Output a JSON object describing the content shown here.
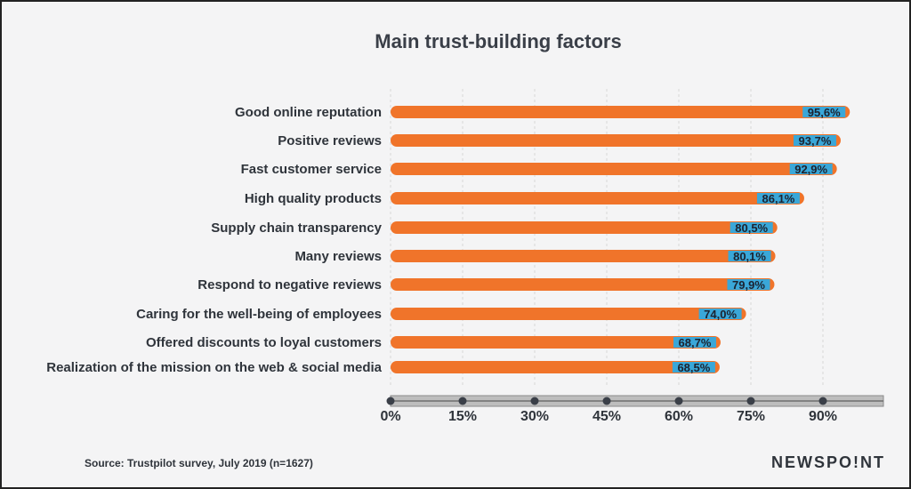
{
  "chart_data": {
    "type": "bar",
    "orientation": "horizontal",
    "title": "Main trust-building factors",
    "categories": [
      "Good online reputation",
      "Positive reviews",
      "Fast customer service",
      "High quality products",
      "Supply chain transparency",
      "Many reviews",
      "Respond to negative reviews",
      "Caring for the well-being of employees",
      "Offered discounts to loyal customers",
      "Realization of the mission on the web & social media"
    ],
    "values": [
      95.6,
      93.7,
      92.9,
      86.1,
      80.5,
      80.1,
      79.9,
      74.0,
      68.7,
      68.5
    ],
    "value_labels": [
      "95,6%",
      "93,7%",
      "92,9%",
      "86,1%",
      "80,5%",
      "80,1%",
      "79,9%",
      "74,0%",
      "68,7%",
      "68,5%"
    ],
    "x_ticks": [
      0,
      15,
      30,
      45,
      60,
      75,
      90
    ],
    "x_tick_labels": [
      "0%",
      "15%",
      "30%",
      "45%",
      "60%",
      "75%",
      "90%"
    ],
    "xlim": [
      0,
      102
    ],
    "grid": true,
    "legend": "none"
  },
  "colors": {
    "bar": "#f0742a",
    "label_box": "#3aa7d8",
    "axis_bar": "#bdbdbd",
    "axis_dot": "#3a3f48"
  },
  "footer": {
    "source": "Source: Trustpilot survey, July 2019 (n=1627)",
    "brand": "NEWSPO!NT"
  }
}
